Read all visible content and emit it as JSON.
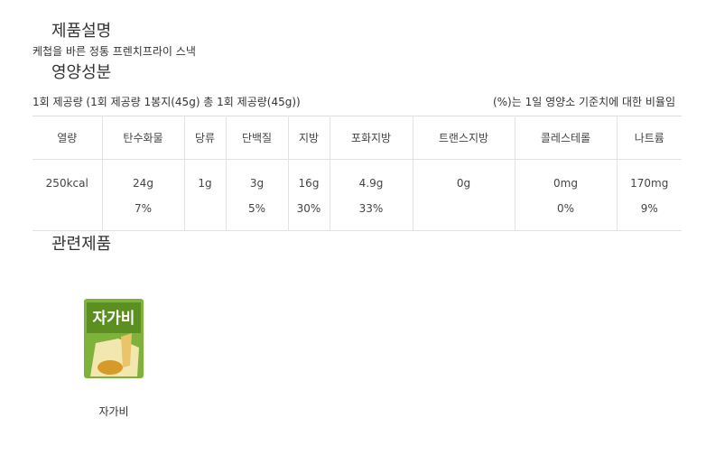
{
  "description": {
    "title": "제품설명",
    "text": "케첩을 바른 정통 프렌치프라이 스낵"
  },
  "nutrition": {
    "title": "영양성분",
    "serving": "1회 제공량 (1회 제공량 1봉지(45g) 총 1회 제공량(45g))",
    "note": "(%)는 1일 영양소 기준치에 대한 비율임",
    "headers": [
      "열량",
      "탄수화물",
      "당류",
      "단백질",
      "지방",
      "포화지방",
      "트랜스지방",
      "콜레스테롤",
      "나트륨"
    ],
    "rows": [
      [
        "250kcal",
        "24g",
        "1g",
        "3g",
        "16g",
        "4.9g",
        "0g",
        "0mg",
        "170mg"
      ],
      [
        null,
        "7%",
        null,
        "5%",
        "30%",
        "33%",
        null,
        "0%",
        "9%"
      ]
    ]
  },
  "related": {
    "title": "관련제품",
    "products": [
      {
        "package_label": "자가비",
        "name": "자가비"
      }
    ]
  }
}
